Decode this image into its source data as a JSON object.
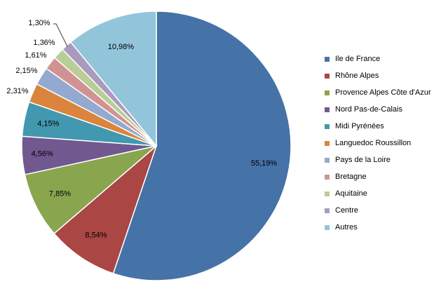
{
  "chart_data": {
    "type": "pie",
    "start_angle_deg": 0,
    "direction": "clockwise",
    "slices": [
      {
        "label": "Ile de France",
        "value": 55.19,
        "value_label": "55,19%",
        "color": "#4572A7"
      },
      {
        "label": "Rhône Alpes",
        "value": 8.54,
        "value_label": "8,54%",
        "color": "#AA4643"
      },
      {
        "label": "Provence Alpes Côte d'Azur",
        "value": 7.85,
        "value_label": "7,85%",
        "color": "#89A54E"
      },
      {
        "label": "Nord Pas-de-Calais",
        "value": 4.56,
        "value_label": "4,56%",
        "color": "#71588F"
      },
      {
        "label": "Midi Pyrénées",
        "value": 4.15,
        "value_label": "4,15%",
        "color": "#4198AF"
      },
      {
        "label": "Languedoc Roussillon",
        "value": 2.31,
        "value_label": "2,31%",
        "color": "#DB843D"
      },
      {
        "label": "Pays de la Loire",
        "value": 2.15,
        "value_label": "2,15%",
        "color": "#93A9CF"
      },
      {
        "label": "Bretagne",
        "value": 1.61,
        "value_label": "1,61%",
        "color": "#D19392"
      },
      {
        "label": "Aquitaine",
        "value": 1.36,
        "value_label": "1,36%",
        "color": "#B9CD96"
      },
      {
        "label": "Centre",
        "value": 1.3,
        "value_label": "1,30%",
        "color": "#A99BBD"
      },
      {
        "label": "Autres",
        "value": 10.98,
        "value_label": "10,98%",
        "color": "#92C5D9"
      }
    ],
    "legend_position": "right"
  }
}
